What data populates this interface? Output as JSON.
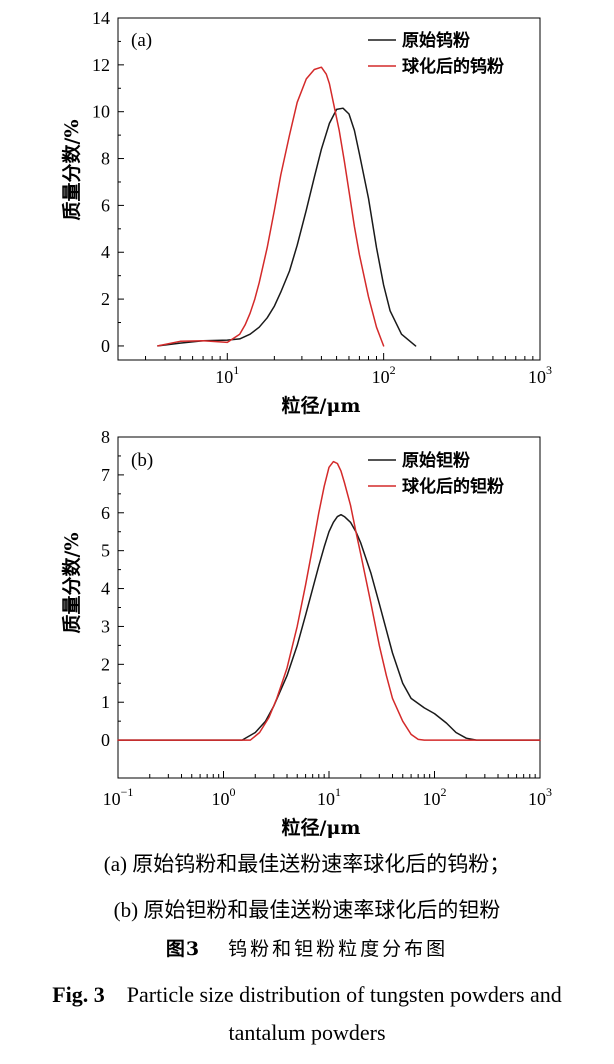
{
  "chart_data": [
    {
      "type": "line",
      "panel_label": "(a)",
      "xlabel": "粒径/μm",
      "ylabel": "质量分数/%",
      "xscale": "log",
      "xlim": [
        2,
        1000
      ],
      "ylim": [
        -0.6,
        14
      ],
      "xticks": [
        10,
        100,
        1000
      ],
      "xtick_labels": [
        {
          "base": "10",
          "exp": "1"
        },
        {
          "base": "10",
          "exp": "2"
        },
        {
          "base": "10",
          "exp": "3"
        }
      ],
      "yticks": [
        0,
        2,
        4,
        6,
        8,
        10,
        12,
        14
      ],
      "legend_placement": "top-right",
      "series": [
        {
          "name": "原始钨粉",
          "color": "#1a1a1a",
          "x": [
            3.6,
            5,
            7,
            10,
            12,
            14,
            16,
            18,
            20,
            22,
            25,
            28,
            32,
            36,
            40,
            45,
            50,
            55,
            60,
            65,
            70,
            80,
            90,
            100,
            110,
            130,
            160
          ],
          "y": [
            0.0,
            0.12,
            0.22,
            0.25,
            0.3,
            0.5,
            0.8,
            1.2,
            1.7,
            2.3,
            3.2,
            4.3,
            5.8,
            7.2,
            8.4,
            9.5,
            10.1,
            10.15,
            9.9,
            9.2,
            8.2,
            6.3,
            4.2,
            2.6,
            1.5,
            0.5,
            0.0
          ]
        },
        {
          "name": "球化后的钨粉",
          "color": "#d42a2a",
          "x": [
            3.6,
            5,
            7,
            10,
            12,
            13,
            14,
            15,
            16,
            18,
            20,
            22,
            25,
            28,
            32,
            36,
            40,
            43,
            45,
            48,
            52,
            56,
            60,
            65,
            70,
            80,
            90,
            100
          ],
          "y": [
            0.0,
            0.2,
            0.22,
            0.15,
            0.5,
            0.9,
            1.4,
            2.0,
            2.7,
            4.2,
            5.8,
            7.3,
            9.0,
            10.4,
            11.4,
            11.8,
            11.9,
            11.6,
            11.2,
            10.3,
            9.2,
            7.9,
            6.6,
            5.1,
            3.9,
            2.1,
            0.8,
            0.0
          ]
        }
      ]
    },
    {
      "type": "line",
      "panel_label": "(b)",
      "xlabel": "粒径/μm",
      "ylabel": "质量分数/%",
      "xscale": "log",
      "xlim": [
        0.1,
        1000
      ],
      "ylim": [
        -1,
        8
      ],
      "xticks": [
        0.1,
        1,
        10,
        100,
        1000
      ],
      "xtick_labels": [
        {
          "base": "10",
          "exp": "−1"
        },
        {
          "base": "10",
          "exp": "0"
        },
        {
          "base": "10",
          "exp": "1"
        },
        {
          "base": "10",
          "exp": "2"
        },
        {
          "base": "10",
          "exp": "3"
        }
      ],
      "yticks": [
        0,
        1,
        2,
        3,
        4,
        5,
        6,
        7,
        8
      ],
      "legend_placement": "top-right",
      "series": [
        {
          "name": "原始钽粉",
          "color": "#1a1a1a",
          "x": [
            0.1,
            1.5,
            2,
            2.5,
            3,
            4,
            5,
            6,
            7,
            8,
            9,
            10,
            11,
            12,
            13,
            14,
            16,
            18,
            20,
            25,
            30,
            35,
            40,
            50,
            60,
            80,
            100,
            130,
            160,
            200,
            250,
            1000
          ],
          "y": [
            0.0,
            0.0,
            0.2,
            0.5,
            0.9,
            1.7,
            2.5,
            3.3,
            4.0,
            4.6,
            5.1,
            5.5,
            5.75,
            5.9,
            5.95,
            5.9,
            5.75,
            5.5,
            5.2,
            4.4,
            3.6,
            2.9,
            2.3,
            1.5,
            1.1,
            0.85,
            0.7,
            0.45,
            0.2,
            0.05,
            0.0,
            0.0
          ]
        },
        {
          "name": "球化后的钽粉",
          "color": "#d42a2a",
          "x": [
            0.1,
            1.8,
            2.2,
            2.7,
            3.2,
            4,
            5,
            6,
            7,
            8,
            9,
            10,
            11,
            12,
            13,
            14,
            16,
            18,
            20,
            25,
            30,
            35,
            40,
            50,
            60,
            70,
            80,
            1000
          ],
          "y": [
            0.0,
            0.0,
            0.2,
            0.6,
            1.1,
            1.9,
            3.0,
            4.1,
            5.1,
            6.0,
            6.7,
            7.2,
            7.35,
            7.3,
            7.1,
            6.8,
            6.2,
            5.5,
            4.9,
            3.6,
            2.5,
            1.7,
            1.1,
            0.5,
            0.15,
            0.02,
            0.0,
            0.0
          ]
        }
      ]
    }
  ],
  "caption": {
    "zh_line1": "(a) 原始钨粉和最佳送粉速率球化后的钨粉；",
    "zh_line2": "(b) 原始钽粉和最佳送粉速率球化后的钽粉",
    "fig_label_zh": "图3",
    "fig_title_zh": "钨粉和钽粉粒度分布图",
    "fig_label_en": "Fig. 3",
    "fig_title_en_line1": "Particle size distribution of tungsten powders and",
    "fig_title_en_line2": "tantalum powders"
  }
}
